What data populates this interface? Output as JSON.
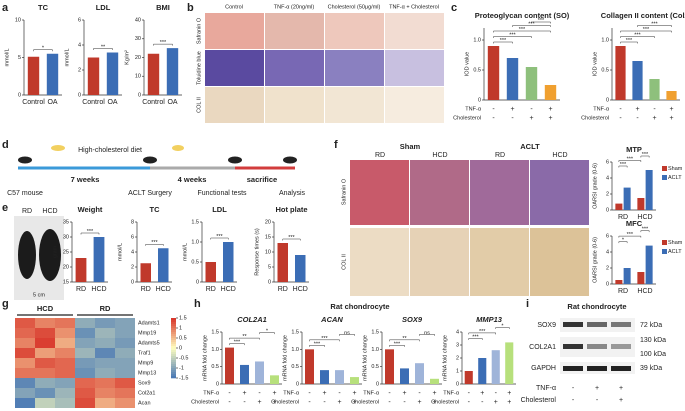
{
  "panels": [
    "a",
    "b",
    "c",
    "d",
    "e",
    "f",
    "g",
    "h",
    "i"
  ],
  "panel_b": {
    "columns": [
      "Control",
      "TNF-α (20ng/ml)",
      "Cholesterol (50μg/ml)",
      "TNF-α + Cholesterol"
    ],
    "rows": [
      "Safranin O",
      "Toluidine blue",
      "COL II"
    ]
  },
  "panel_d": {
    "diet": "High-cholesterol diet",
    "period1": "7 weeks",
    "period2": "4 weeks",
    "steps": [
      "C57 mouse",
      "ACLT Surgery",
      "Functional tests",
      "sacrifice",
      "Analysis"
    ]
  },
  "panel_e": {
    "photo_labels": [
      "RD",
      "HCD"
    ],
    "scale": "5 cm"
  },
  "panel_f": {
    "groups": [
      "Sham",
      "ACLT"
    ],
    "columns": [
      "RD",
      "HCD",
      "RD",
      "HCD"
    ],
    "rows": [
      "Safranin O",
      "COL II"
    ]
  },
  "panel_h": {
    "title": "Rat chondrocyte"
  },
  "panel_i": {
    "title": "Rat chondrocyte",
    "rows": [
      "SOX9",
      "COL2A1",
      "GAPDH"
    ],
    "sizes": [
      "72 kDa",
      "130 kDa",
      "100 kDa",
      "39 kDa"
    ],
    "conditions": [
      {
        "label": "TNF-α",
        "signs": [
          "-",
          "+",
          "+"
        ]
      },
      {
        "label": "Cholesterol",
        "signs": [
          "-",
          "-",
          "+"
        ]
      }
    ]
  },
  "chart_data": [
    {
      "type": "bar",
      "title": "TC",
      "ylabel": "mmol/L",
      "categories": [
        "Control",
        "OA"
      ],
      "values": [
        5.1,
        5.5
      ],
      "colors": [
        "#c0392b",
        "#3b6db5"
      ],
      "ylim": [
        0,
        10
      ],
      "yticks": [
        0,
        5,
        10
      ],
      "sig": [
        "*"
      ]
    },
    {
      "type": "bar",
      "title": "LDL",
      "ylabel": "mmol/L",
      "categories": [
        "Control",
        "OA"
      ],
      "values": [
        3.0,
        3.4
      ],
      "colors": [
        "#c0392b",
        "#3b6db5"
      ],
      "ylim": [
        0,
        6
      ],
      "yticks": [
        0,
        2,
        4,
        6
      ],
      "sig": [
        "**"
      ]
    },
    {
      "type": "bar",
      "title": "BMI",
      "ylabel": "Kg/m²",
      "categories": [
        "Control",
        "OA"
      ],
      "values": [
        22,
        25
      ],
      "colors": [
        "#c0392b",
        "#3b6db5"
      ],
      "ylim": [
        0,
        40
      ],
      "yticks": [
        0,
        10,
        20,
        30,
        40
      ],
      "sig": [
        "***"
      ]
    },
    {
      "type": "bar",
      "title": "Proteoglycan content (SO)",
      "ylabel": "IOD value",
      "categories": [
        null,
        null,
        null,
        null
      ],
      "values": [
        0.9,
        0.7,
        0.55,
        0.25
      ],
      "colors": [
        "#c0392b",
        "#3b6db5",
        "#8ec07c",
        "#f0a030"
      ],
      "ylim": [
        0,
        1.2
      ],
      "yticks": [
        0,
        0.5,
        {
          "value": 1,
          "label": "1.0"
        }
      ],
      "sig": [
        "***",
        "***",
        "***",
        "***",
        "***"
      ],
      "conditions": [
        {
          "label": "TNF-α",
          "signs": [
            "-",
            "+",
            "-",
            "+"
          ]
        },
        {
          "label": "Cholesterol",
          "signs": [
            "-",
            "-",
            "+",
            "+"
          ]
        }
      ]
    },
    {
      "type": "bar",
      "title": "Collagen II content (Col2)",
      "ylabel": "IOD value",
      "categories": [
        null,
        null,
        null,
        null
      ],
      "values": [
        0.9,
        0.65,
        0.35,
        0.15
      ],
      "colors": [
        "#c0392b",
        "#3b6db5",
        "#8ec07c",
        "#f0a030"
      ],
      "ylim": [
        0,
        1.2
      ],
      "yticks": [
        0,
        0.5,
        {
          "value": 1,
          "label": "1.0"
        }
      ],
      "sig": [
        "***",
        "***",
        "***",
        "***"
      ],
      "conditions": [
        {
          "label": "TNF-α",
          "signs": [
            "-",
            "+",
            "-",
            "+"
          ]
        },
        {
          "label": "Cholesterol",
          "signs": [
            "-",
            "-",
            "+",
            "+"
          ]
        }
      ]
    },
    {
      "type": "bar",
      "title": "Weight",
      "ylabel": "gram",
      "categories": [
        "RD",
        "HCD"
      ],
      "values": [
        23,
        30
      ],
      "colors": [
        "#c0392b",
        "#3b6db5"
      ],
      "ylim": [
        15,
        35
      ],
      "yticks": [
        15,
        20,
        25,
        30,
        35
      ],
      "sig": [
        "***"
      ]
    },
    {
      "type": "bar",
      "title": "TC",
      "ylabel": "mmol/L",
      "categories": [
        "RD",
        "HCD"
      ],
      "values": [
        2.5,
        4.5
      ],
      "colors": [
        "#c0392b",
        "#3b6db5"
      ],
      "ylim": [
        0,
        8
      ],
      "yticks": [
        0,
        2,
        4,
        6,
        8
      ],
      "sig": [
        "***"
      ]
    },
    {
      "type": "bar",
      "title": "LDL",
      "ylabel": "mmol/L",
      "categories": [
        "RD",
        "HCD"
      ],
      "values": [
        0.5,
        1.0
      ],
      "colors": [
        "#c0392b",
        "#3b6db5"
      ],
      "ylim": [
        0,
        1.5
      ],
      "yticks": [
        0,
        0.5,
        {
          "value": 1,
          "label": "1.0"
        },
        1.5
      ],
      "sig": [
        "***"
      ]
    },
    {
      "type": "bar",
      "title": "Hot plate",
      "ylabel": "Response times (s)",
      "categories": [
        "RD",
        "HCD"
      ],
      "values": [
        13,
        9
      ],
      "colors": [
        "#c0392b",
        "#3b6db5"
      ],
      "ylim": [
        0,
        20
      ],
      "yticks": [
        0,
        5,
        10,
        15,
        20
      ],
      "sig": [
        "***"
      ]
    },
    {
      "type": "bar",
      "title": "MTP",
      "ylabel": "OARSI grade (0-6)",
      "categories": [
        "RD",
        "HCD"
      ],
      "series": [
        {
          "name": "Sham",
          "color": "#c0392b",
          "values": [
            0.8,
            1.5
          ]
        },
        {
          "name": "ACLT",
          "color": "#3b6db5",
          "values": [
            2.8,
            5.0
          ]
        }
      ],
      "ylim": [
        0,
        6
      ],
      "yticks": [
        0,
        2,
        4,
        6
      ],
      "sig": [
        "***",
        "***",
        "***"
      ]
    },
    {
      "type": "bar",
      "title": "MFC",
      "ylabel": "OARSI grade (0-6)",
      "categories": [
        "RD",
        "HCD"
      ],
      "series": [
        {
          "name": "Sham",
          "color": "#c0392b",
          "values": [
            0.5,
            1.5
          ]
        },
        {
          "name": "ACLT",
          "color": "#3b6db5",
          "values": [
            2.0,
            4.8
          ]
        }
      ],
      "ylim": [
        0,
        6
      ],
      "yticks": [
        0,
        2,
        4,
        6
      ],
      "sig": [
        "*",
        "***",
        "***"
      ]
    },
    {
      "type": "bar",
      "title": "COL2A1",
      "italic": true,
      "ylabel": "mRNA fold change",
      "categories": [
        null,
        null,
        null,
        null
      ],
      "values": [
        1.05,
        0.55,
        0.65,
        0.25
      ],
      "colors": [
        "#c0392b",
        "#3b6db5",
        "#9fb4d9",
        "#b7e07c"
      ],
      "ylim": [
        0,
        1.5
      ],
      "yticks": [
        0,
        0.5,
        {
          "value": 1,
          "label": "1.0"
        },
        1.5
      ],
      "sig": [
        "***",
        "**",
        "*"
      ],
      "conditions": [
        {
          "label": "TNF-α",
          "signs": [
            "-",
            "+",
            "-",
            "+"
          ]
        },
        {
          "label": "Cholesterol",
          "signs": [
            "-",
            "-",
            "+",
            "+"
          ]
        }
      ]
    },
    {
      "type": "bar",
      "title": "ACAN",
      "italic": true,
      "ylabel": "mRNA fold change",
      "categories": [
        null,
        null,
        null,
        null
      ],
      "values": [
        1.0,
        0.4,
        0.4,
        0.2
      ],
      "colors": [
        "#c0392b",
        "#3b6db5",
        "#9fb4d9",
        "#b7e07c"
      ],
      "ylim": [
        0,
        1.5
      ],
      "yticks": [
        0,
        0.5,
        {
          "value": 1,
          "label": "1.0"
        },
        1.5
      ],
      "sig": [
        "***",
        "***",
        "ns"
      ],
      "conditions": [
        {
          "label": "TNF-α",
          "signs": [
            "-",
            "+",
            "-",
            "+"
          ]
        },
        {
          "label": "Cholesterol",
          "signs": [
            "-",
            "-",
            "+",
            "+"
          ]
        }
      ]
    },
    {
      "type": "bar",
      "title": "SOX9",
      "italic": true,
      "ylabel": "mRNA fold change",
      "categories": [
        null,
        null,
        null,
        null
      ],
      "values": [
        1.0,
        0.45,
        0.6,
        0.15
      ],
      "colors": [
        "#c0392b",
        "#3b6db5",
        "#9fb4d9",
        "#b7e07c"
      ],
      "ylim": [
        0,
        1.5
      ],
      "yticks": [
        0,
        0.5,
        {
          "value": 1,
          "label": "1.0"
        },
        1.5
      ],
      "sig": [
        "***",
        "**",
        "ns"
      ],
      "conditions": [
        {
          "label": "TNF-α",
          "signs": [
            "-",
            "+",
            "-",
            "+"
          ]
        },
        {
          "label": "Cholesterol",
          "signs": [
            "-",
            "-",
            "+",
            "+"
          ]
        }
      ]
    },
    {
      "type": "bar",
      "title": "MMP13",
      "italic": true,
      "ylabel": "mRNA fold change",
      "categories": [
        null,
        null,
        null,
        null
      ],
      "values": [
        1.0,
        2.0,
        2.6,
        3.2
      ],
      "colors": [
        "#c0392b",
        "#3b6db5",
        "#9fb4d9",
        "#b7e07c"
      ],
      "ylim": [
        0,
        4
      ],
      "yticks": [
        0,
        1,
        2,
        3,
        4
      ],
      "sig": [
        "***",
        "***",
        "*"
      ],
      "conditions": [
        {
          "label": "TNF-α",
          "signs": [
            "-",
            "+",
            "-",
            "+"
          ]
        },
        {
          "label": "Cholesterol",
          "signs": [
            "-",
            "-",
            "+",
            "+"
          ]
        }
      ]
    },
    {
      "type": "heatmap",
      "column_groups": [
        "HCD",
        "RD"
      ],
      "row_labels": [
        "Adamts1",
        "Mmp19",
        "Adamts5",
        "Traf1",
        "Mmp9",
        "Mmp13",
        "Sox9",
        "Col2a1",
        "Acan"
      ],
      "values": [
        [
          1.2,
          0.9,
          1.0,
          -0.9,
          -1.1,
          -1.0
        ],
        [
          1.1,
          1.3,
          0.8,
          -1.2,
          -0.8,
          -1.0
        ],
        [
          0.9,
          1.4,
          0.6,
          -1.0,
          -0.9,
          -1.1
        ],
        [
          1.3,
          0.7,
          0.9,
          -0.8,
          -1.3,
          -0.9
        ],
        [
          0.8,
          1.2,
          1.1,
          -1.1,
          -1.0,
          -1.0
        ],
        [
          1.0,
          1.0,
          1.1,
          -1.2,
          -0.9,
          -1.0
        ],
        [
          -1.3,
          -0.9,
          -1.0,
          1.1,
          1.0,
          1.2
        ],
        [
          -1.0,
          -1.2,
          -0.8,
          1.2,
          0.9,
          1.0
        ],
        [
          -1.4,
          -0.5,
          -0.7,
          1.3,
          0.6,
          0.8
        ]
      ],
      "clim": [
        -1.5,
        1.5
      ],
      "colorbar_ticks": [
        1.5,
        1,
        0.5,
        0,
        -0.5,
        -1,
        -1.5
      ]
    }
  ]
}
